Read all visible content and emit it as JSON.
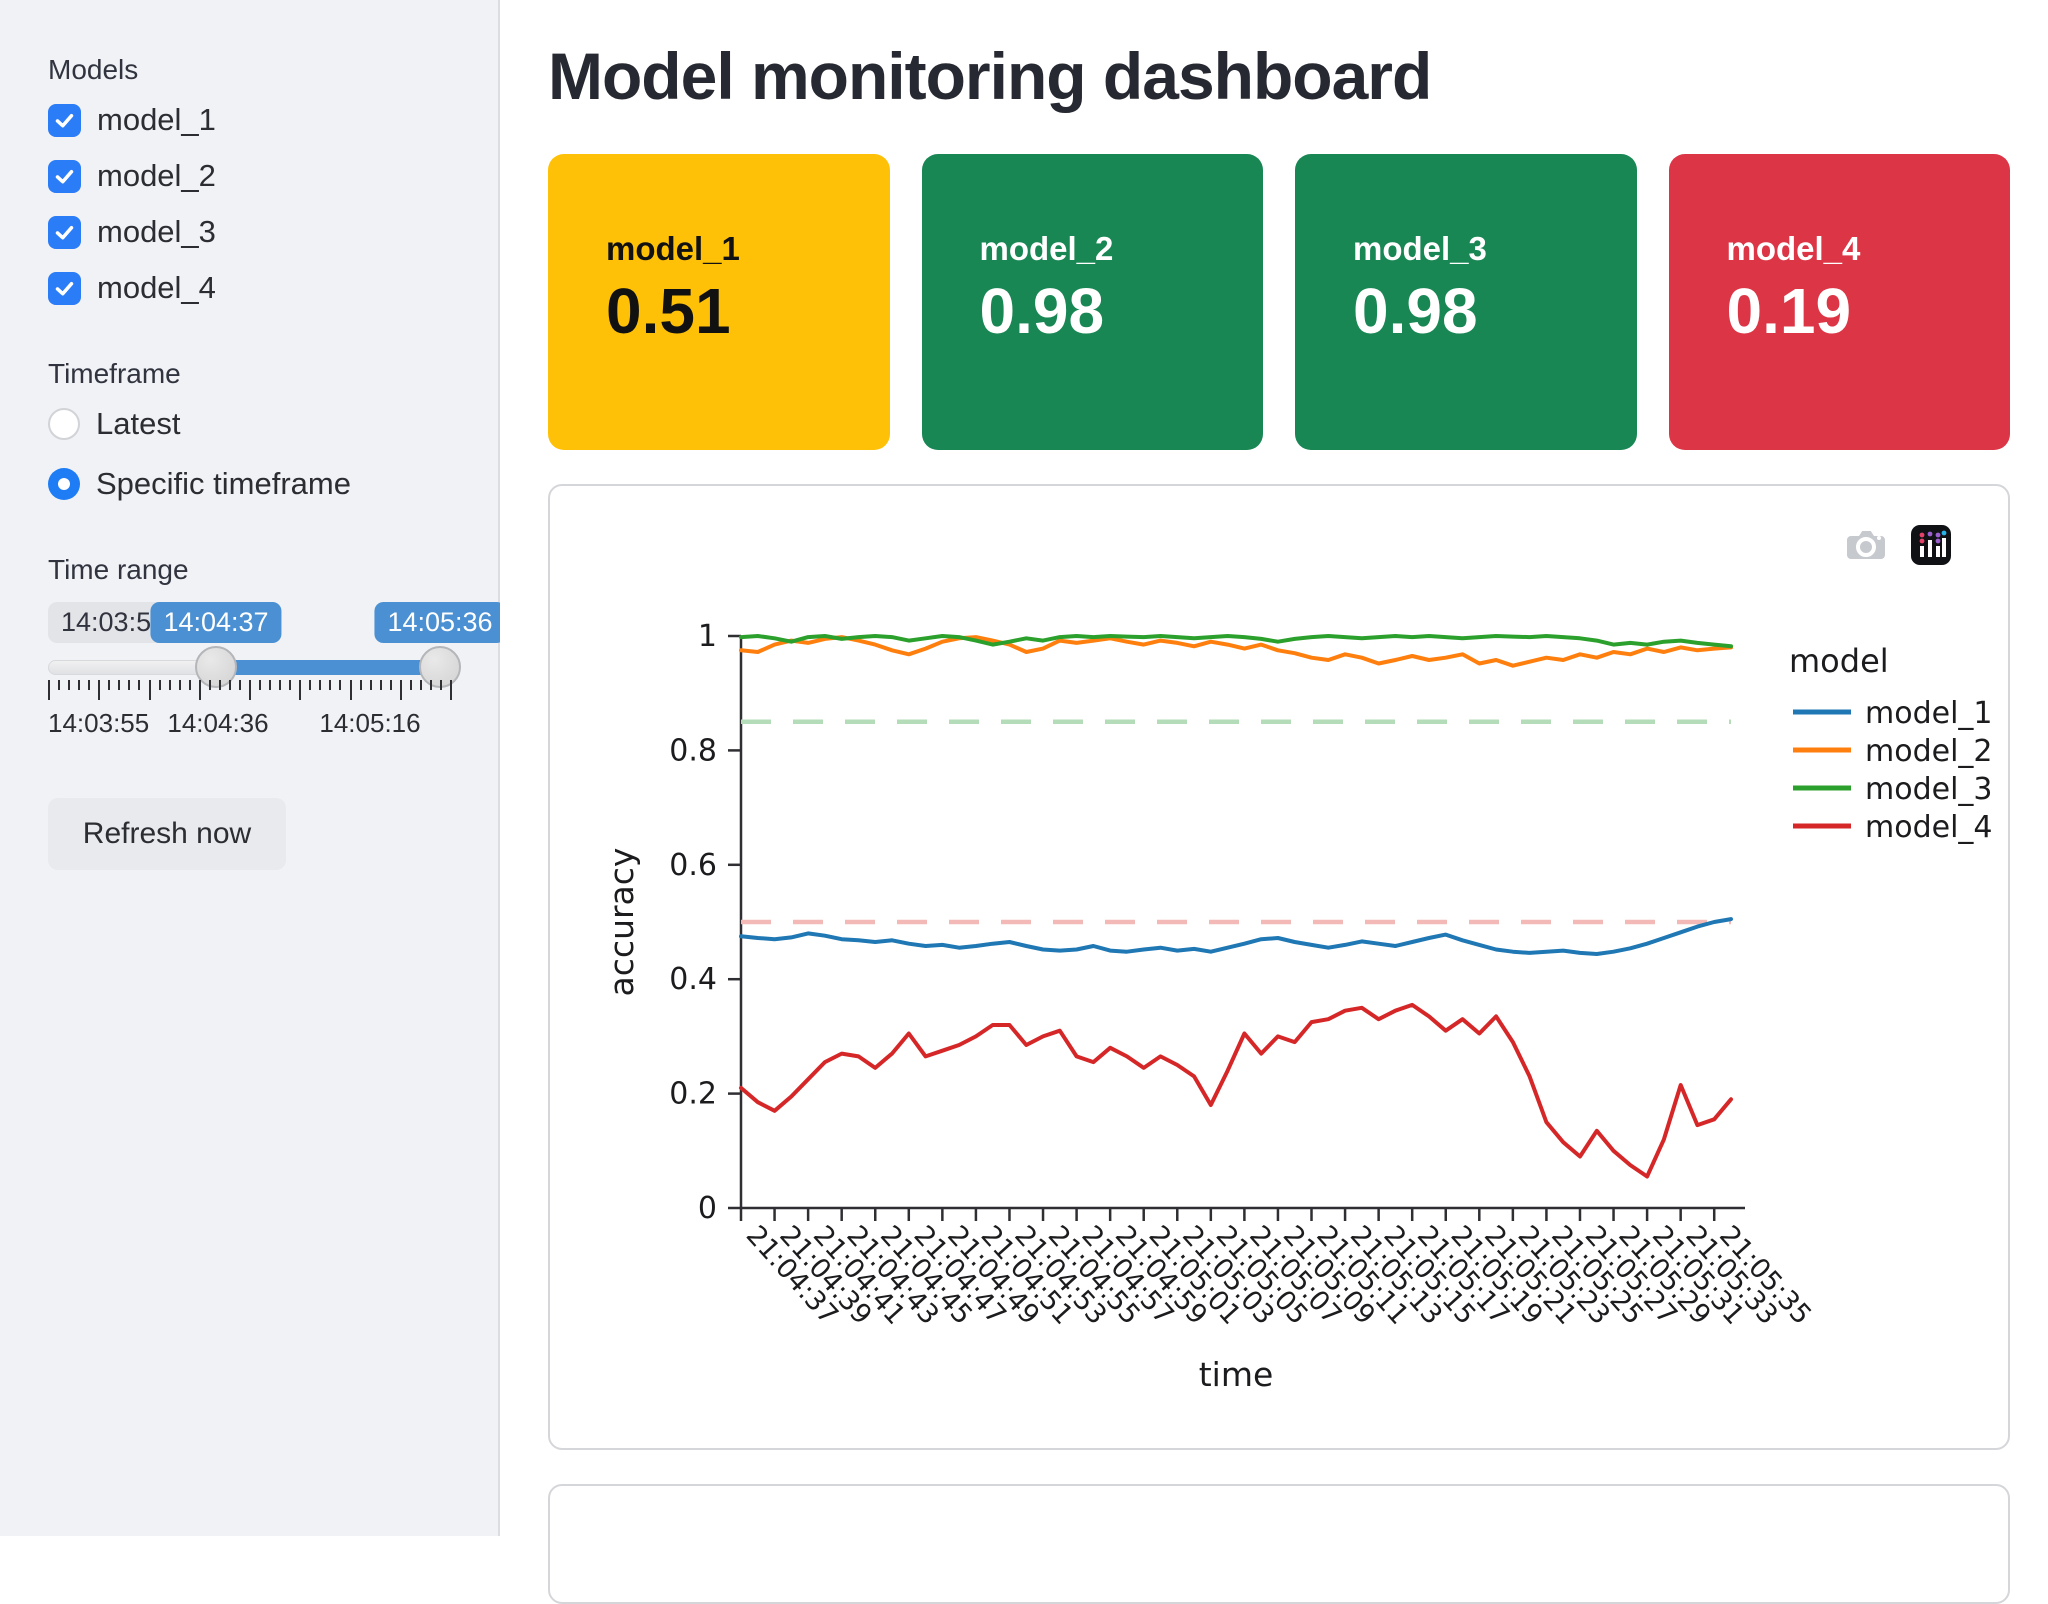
{
  "sidebar": {
    "models_label": "Models",
    "models": [
      {
        "label": "model_1",
        "checked": true
      },
      {
        "label": "model_2",
        "checked": true
      },
      {
        "label": "model_3",
        "checked": true
      },
      {
        "label": "model_4",
        "checked": true
      }
    ],
    "timeframe_label": "Timeframe",
    "timeframe_options": [
      {
        "label": "Latest",
        "selected": false
      },
      {
        "label": "Specific timeframe",
        "selected": true
      }
    ],
    "time_range_label": "Time range",
    "slider": {
      "min_label": "14:03:55",
      "start_value": "14:04:37",
      "end_value": "14:05:36",
      "axis_labels": [
        "14:03:55",
        "14:04:36",
        "14:05:16"
      ]
    },
    "refresh_button_label": "Refresh now"
  },
  "icons": {
    "collapse_chevron": "‹"
  },
  "header": {
    "title": "Model monitoring dashboard"
  },
  "metric_cards": [
    {
      "label": "model_1",
      "value": "0.51",
      "color": "#ffc107",
      "text_color": "#111111"
    },
    {
      "label": "model_2",
      "value": "0.98",
      "color": "#198754",
      "text_color": "#ffffff"
    },
    {
      "label": "model_3",
      "value": "0.98",
      "color": "#198754",
      "text_color": "#ffffff"
    },
    {
      "label": "model_4",
      "value": "0.19",
      "color": "#dc3545",
      "text_color": "#ffffff"
    }
  ],
  "chart_data": {
    "type": "line",
    "title": "",
    "xlabel": "time",
    "ylabel": "accuracy",
    "ylim": [
      0,
      1
    ],
    "y_ticks": [
      0,
      0.2,
      0.4,
      0.6,
      0.8,
      1
    ],
    "legend_title": "model",
    "legend_position": "right",
    "grid": false,
    "x_tick_labels": [
      "21:04:37",
      "21:04:39",
      "21:04:41",
      "21:04:43",
      "21:04:45",
      "21:04:47",
      "21:04:49",
      "21:04:51",
      "21:04:53",
      "21:04:55",
      "21:04:57",
      "21:04:59",
      "21:05:01",
      "21:05:03",
      "21:05:05",
      "21:05:07",
      "21:05:09",
      "21:05:11",
      "21:05:13",
      "21:05:15",
      "21:05:17",
      "21:05:19",
      "21:05:21",
      "21:05:23",
      "21:05:25",
      "21:05:27",
      "21:05:29",
      "21:05:31",
      "21:05:33",
      "21:05:35"
    ],
    "thresholds": [
      {
        "y": 0.85,
        "color": "#b5dcb8",
        "style": "dashed"
      },
      {
        "y": 0.5,
        "color": "#f3b9b7",
        "style": "dashed"
      }
    ],
    "series": [
      {
        "name": "model_1",
        "color": "#1f77b4",
        "values": [
          0.475,
          0.472,
          0.47,
          0.473,
          0.48,
          0.476,
          0.47,
          0.468,
          0.465,
          0.468,
          0.462,
          0.458,
          0.46,
          0.455,
          0.458,
          0.462,
          0.465,
          0.458,
          0.452,
          0.45,
          0.452,
          0.458,
          0.45,
          0.448,
          0.452,
          0.455,
          0.45,
          0.453,
          0.448,
          0.455,
          0.462,
          0.47,
          0.472,
          0.465,
          0.46,
          0.455,
          0.46,
          0.466,
          0.462,
          0.458,
          0.465,
          0.472,
          0.478,
          0.468,
          0.46,
          0.452,
          0.448,
          0.446,
          0.448,
          0.45,
          0.446,
          0.444,
          0.448,
          0.454,
          0.462,
          0.472,
          0.482,
          0.492,
          0.5,
          0.505
        ]
      },
      {
        "name": "model_2",
        "color": "#ff7f0e",
        "values": [
          0.975,
          0.972,
          0.985,
          0.992,
          0.988,
          0.995,
          0.998,
          0.992,
          0.985,
          0.975,
          0.968,
          0.978,
          0.99,
          0.996,
          0.998,
          0.992,
          0.985,
          0.972,
          0.978,
          0.992,
          0.988,
          0.992,
          0.996,
          0.99,
          0.985,
          0.992,
          0.988,
          0.982,
          0.99,
          0.985,
          0.978,
          0.985,
          0.975,
          0.97,
          0.962,
          0.958,
          0.968,
          0.962,
          0.952,
          0.958,
          0.965,
          0.958,
          0.962,
          0.968,
          0.952,
          0.958,
          0.948,
          0.955,
          0.962,
          0.958,
          0.968,
          0.962,
          0.972,
          0.968,
          0.978,
          0.972,
          0.98,
          0.975,
          0.978,
          0.98
        ]
      },
      {
        "name": "model_3",
        "color": "#2ca02c",
        "values": [
          0.998,
          1.0,
          0.996,
          0.99,
          0.998,
          1.0,
          0.995,
          0.998,
          1.0,
          0.998,
          0.992,
          0.996,
          1.0,
          0.998,
          0.992,
          0.985,
          0.99,
          0.996,
          0.992,
          0.998,
          1.0,
          0.998,
          1.0,
          0.999,
          0.998,
          1.0,
          0.998,
          0.996,
          0.998,
          1.0,
          0.998,
          0.995,
          0.99,
          0.995,
          0.998,
          1.0,
          0.998,
          0.996,
          0.998,
          1.0,
          0.998,
          1.0,
          0.998,
          0.996,
          0.998,
          1.0,
          0.999,
          0.998,
          1.0,
          0.998,
          0.996,
          0.992,
          0.985,
          0.988,
          0.985,
          0.99,
          0.992,
          0.988,
          0.985,
          0.982
        ]
      },
      {
        "name": "model_4",
        "color": "#d62728",
        "values": [
          0.21,
          0.185,
          0.17,
          0.195,
          0.225,
          0.255,
          0.27,
          0.265,
          0.245,
          0.27,
          0.305,
          0.265,
          0.275,
          0.285,
          0.3,
          0.32,
          0.32,
          0.285,
          0.3,
          0.31,
          0.265,
          0.255,
          0.28,
          0.265,
          0.245,
          0.265,
          0.25,
          0.23,
          0.18,
          0.24,
          0.305,
          0.27,
          0.3,
          0.29,
          0.325,
          0.33,
          0.345,
          0.35,
          0.33,
          0.345,
          0.355,
          0.335,
          0.31,
          0.33,
          0.305,
          0.335,
          0.29,
          0.23,
          0.15,
          0.115,
          0.09,
          0.135,
          0.1,
          0.075,
          0.055,
          0.12,
          0.215,
          0.145,
          0.155,
          0.19
        ]
      }
    ]
  }
}
